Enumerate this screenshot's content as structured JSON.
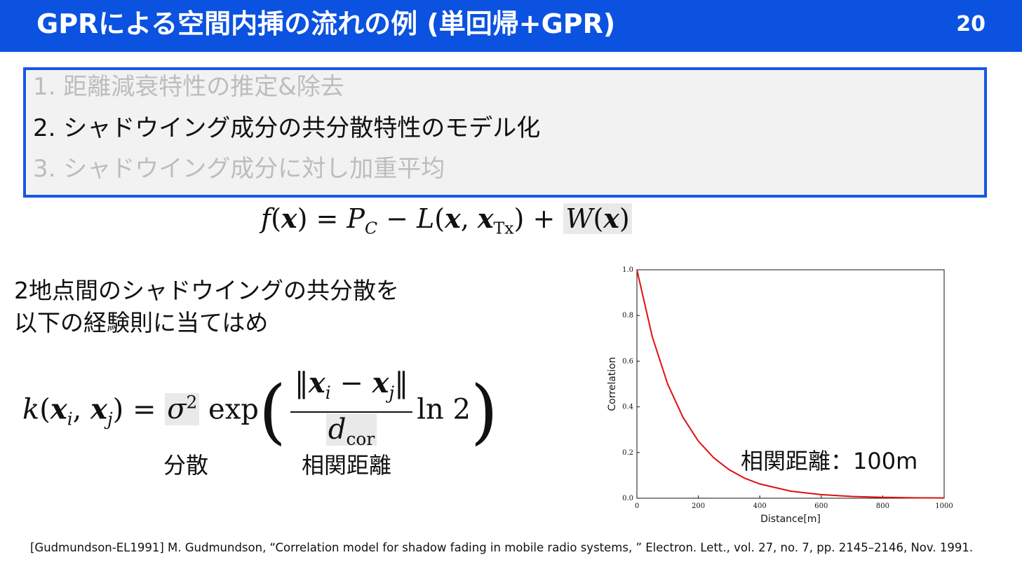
{
  "header": {
    "title": "GPRによる空間内挿の流れの例 (単回帰+GPR)",
    "page_number": "20",
    "background": "#0b52e0"
  },
  "steps": [
    {
      "label": "1. 距離減衰特性の推定&除去",
      "active": false
    },
    {
      "label": "2. シャドウイング成分の共分散特性のモデル化",
      "active": true
    },
    {
      "label": "3. シャドウイング成分に対し加重平均",
      "active": false
    }
  ],
  "model_equation": "f(x) = P_C − L(x, x_Tx) + W(x)",
  "description": {
    "line1": "2地点間のシャドウイングの共分散を",
    "line2": "以下の経験則に当てはめ"
  },
  "kernel_equation": "k(x_i, x_j) = σ² exp( ‖x_i − x_j‖ / d_cor · ln 2 )",
  "labels": {
    "variance": "分散",
    "correlation_distance": "相関距離"
  },
  "chart_data": {
    "type": "line",
    "xlabel": "Distance[m]",
    "ylabel": "Correlation",
    "xlim": [
      0,
      1000
    ],
    "ylim": [
      0,
      1.0
    ],
    "xticks": [
      "0",
      "200",
      "400",
      "600",
      "800",
      "1000"
    ],
    "yticks": [
      "0.0",
      "0.2",
      "0.4",
      "0.6",
      "0.8",
      "1.0"
    ],
    "series": [
      {
        "color": "#e01010",
        "x": [
          0,
          50,
          100,
          150,
          200,
          250,
          300,
          350,
          400,
          500,
          600,
          700,
          800,
          900,
          1000
        ],
        "y": [
          1.0,
          0.707,
          0.5,
          0.354,
          0.25,
          0.177,
          0.125,
          0.088,
          0.0625,
          0.031,
          0.0156,
          0.0078,
          0.0039,
          0.002,
          0.001
        ]
      }
    ],
    "annotation": "相関距離：100m",
    "grid": false
  },
  "citation": "[Gudmundson-EL1991] M. Gudmundson, “Correlation model for shadow fading in mobile radio systems, ” Electron. Lett., vol. 27, no. 7, pp. 2145–2146, Nov. 1991."
}
